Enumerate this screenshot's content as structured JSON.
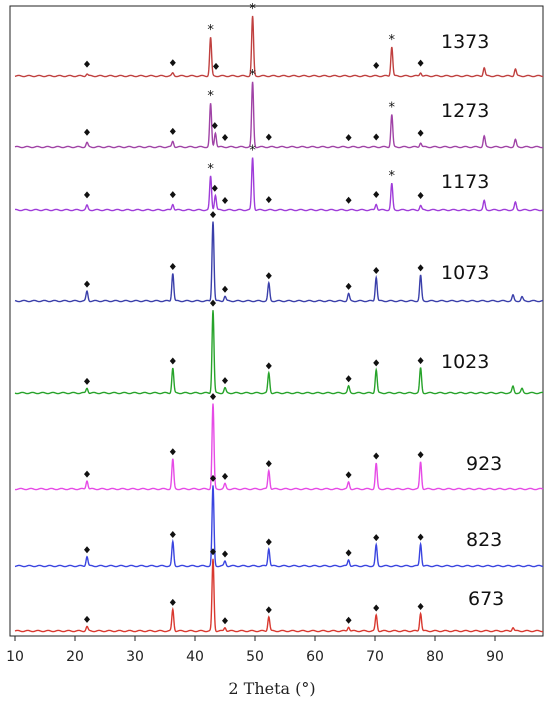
{
  "chart_data": {
    "type": "line",
    "title": "",
    "xlabel": "2 Theta (°)",
    "ylabel": "",
    "xlim": [
      10,
      98
    ],
    "x_ticks": [
      10,
      20,
      30,
      40,
      50,
      60,
      70,
      80,
      90
    ],
    "grid": false,
    "legend": "inline labels at right of each trace",
    "peak_markers": {
      "diamond": [
        22.0,
        36.3,
        43.0,
        45.0,
        52.3,
        65.6,
        70.2,
        77.6
      ],
      "star": [
        42.6,
        49.6,
        72.8
      ]
    },
    "series": [
      {
        "name": "1373",
        "color": "#c0403f",
        "peaks": [
          [
            22.0,
            0.03
          ],
          [
            36.3,
            0.04
          ],
          [
            42.6,
            0.55
          ],
          [
            49.6,
            0.85
          ],
          [
            72.8,
            0.42
          ],
          [
            77.6,
            0.05
          ],
          [
            88.2,
            0.12
          ],
          [
            93.4,
            0.1
          ]
        ],
        "diamonds": [
          22.0,
          36.3,
          43.5,
          70.2,
          77.6
        ],
        "stars": [
          42.6,
          49.6,
          72.8
        ]
      },
      {
        "name": "1273",
        "color": "#a043a6",
        "peaks": [
          [
            22.0,
            0.06
          ],
          [
            36.3,
            0.08
          ],
          [
            42.6,
            0.6
          ],
          [
            43.4,
            0.2
          ],
          [
            49.6,
            0.9
          ],
          [
            72.8,
            0.45
          ],
          [
            77.6,
            0.06
          ],
          [
            88.2,
            0.15
          ],
          [
            93.4,
            0.1
          ]
        ],
        "diamonds": [
          22.0,
          36.3,
          43.3,
          45.0,
          52.3,
          65.6,
          70.2,
          77.6
        ],
        "stars": [
          42.6,
          49.6,
          72.8
        ]
      },
      {
        "name": "1173",
        "color": "#9f3cd9",
        "peaks": [
          [
            22.0,
            0.06
          ],
          [
            36.3,
            0.08
          ],
          [
            42.6,
            0.45
          ],
          [
            43.4,
            0.2
          ],
          [
            49.6,
            0.7
          ],
          [
            70.2,
            0.08
          ],
          [
            72.8,
            0.35
          ],
          [
            77.6,
            0.06
          ],
          [
            88.2,
            0.12
          ],
          [
            93.4,
            0.1
          ]
        ],
        "diamonds": [
          22.0,
          36.3,
          43.3,
          45.0,
          52.3,
          65.6,
          70.2,
          77.6
        ],
        "stars": [
          42.6,
          49.6,
          72.8
        ]
      },
      {
        "name": "1073",
        "color": "#3a3faa",
        "peaks": [
          [
            22.0,
            0.12
          ],
          [
            36.3,
            0.35
          ],
          [
            43.0,
            1.0
          ],
          [
            45.0,
            0.06
          ],
          [
            52.3,
            0.22
          ],
          [
            65.6,
            0.09
          ],
          [
            70.2,
            0.3
          ],
          [
            77.6,
            0.32
          ],
          [
            93.0,
            0.07
          ],
          [
            94.5,
            0.05
          ]
        ],
        "diamonds": [
          22.0,
          36.3,
          43.0,
          45.0,
          52.3,
          65.6,
          70.2,
          77.6
        ],
        "stars": []
      },
      {
        "name": "1023",
        "color": "#27a32a",
        "peaks": [
          [
            22.0,
            0.06
          ],
          [
            36.3,
            0.3
          ],
          [
            43.0,
            1.0
          ],
          [
            45.0,
            0.06
          ],
          [
            52.3,
            0.24
          ],
          [
            65.6,
            0.08
          ],
          [
            70.2,
            0.28
          ],
          [
            77.6,
            0.3
          ],
          [
            93.0,
            0.08
          ],
          [
            94.5,
            0.05
          ]
        ],
        "diamonds": [
          22.0,
          36.3,
          43.0,
          45.0,
          52.3,
          65.6,
          70.2,
          77.6
        ],
        "stars": []
      },
      {
        "name": "923",
        "color": "#e64be6",
        "peaks": [
          [
            22.0,
            0.1
          ],
          [
            36.3,
            0.35
          ],
          [
            43.0,
            1.0
          ],
          [
            45.0,
            0.06
          ],
          [
            52.3,
            0.22
          ],
          [
            65.6,
            0.08
          ],
          [
            70.2,
            0.3
          ],
          [
            77.6,
            0.32
          ]
        ],
        "diamonds": [
          22.0,
          36.3,
          43.0,
          45.0,
          52.3,
          65.6,
          70.2,
          77.6
        ],
        "stars": []
      },
      {
        "name": "823",
        "color": "#3a45e0",
        "peaks": [
          [
            22.0,
            0.12
          ],
          [
            36.3,
            0.3
          ],
          [
            43.0,
            1.0
          ],
          [
            45.0,
            0.06
          ],
          [
            52.3,
            0.22
          ],
          [
            65.6,
            0.08
          ],
          [
            70.2,
            0.26
          ],
          [
            77.6,
            0.28
          ]
        ],
        "diamonds": [
          22.0,
          36.3,
          43.0,
          45.0,
          52.3,
          65.6,
          70.2,
          77.6
        ],
        "stars": []
      },
      {
        "name": "673",
        "color": "#d9382f",
        "peaks": [
          [
            22.0,
            0.06
          ],
          [
            36.3,
            0.3
          ],
          [
            43.0,
            1.0
          ],
          [
            45.0,
            0.05
          ],
          [
            52.3,
            0.2
          ],
          [
            65.6,
            0.06
          ],
          [
            70.2,
            0.22
          ],
          [
            77.6,
            0.25
          ],
          [
            93.0,
            0.05
          ]
        ],
        "diamonds": [
          22.0,
          36.3,
          43.0,
          45.0,
          52.3,
          65.6,
          70.2,
          77.6
        ],
        "stars": []
      }
    ]
  }
}
